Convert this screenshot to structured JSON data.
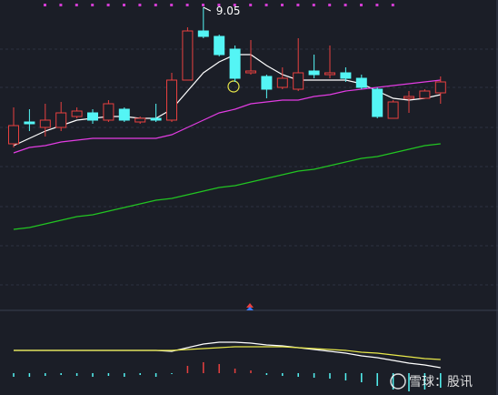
{
  "chart_data": [
    {
      "type": "candlestick",
      "annotation": "9.05",
      "ylim": [
        7.44,
        9.09
      ],
      "up_color": "#e8403f",
      "down_color": "#54f5f5",
      "open": [
        8.3,
        8.42,
        8.39,
        8.39,
        8.45,
        8.47,
        8.43,
        8.49,
        8.42,
        8.44,
        8.43,
        8.65,
        8.92,
        8.89,
        8.82,
        8.69,
        8.67,
        8.61,
        8.6,
        8.7,
        8.68,
        8.69,
        8.66,
        8.6,
        8.44,
        8.55,
        8.55,
        8.58
      ],
      "high": [
        8.5,
        8.49,
        8.52,
        8.53,
        8.5,
        8.49,
        8.54,
        8.5,
        8.45,
        8.52,
        8.69,
        8.94,
        9.05,
        8.9,
        8.84,
        8.87,
        8.68,
        8.72,
        8.88,
        8.79,
        8.84,
        8.72,
        8.68,
        8.61,
        8.54,
        8.59,
        8.6,
        8.67
      ],
      "low": [
        8.28,
        8.37,
        8.34,
        8.37,
        8.44,
        8.41,
        8.42,
        8.42,
        8.41,
        8.42,
        8.42,
        8.65,
        8.88,
        8.78,
        8.64,
        8.68,
        8.55,
        8.6,
        8.59,
        8.66,
        8.66,
        8.64,
        8.6,
        8.44,
        8.44,
        8.47,
        8.55,
        8.52
      ],
      "close": [
        8.4,
        8.41,
        8.43,
        8.47,
        8.48,
        8.43,
        8.52,
        8.43,
        8.44,
        8.43,
        8.65,
        8.92,
        8.89,
        8.79,
        8.66,
        8.7,
        8.6,
        8.66,
        8.69,
        8.68,
        8.69,
        8.66,
        8.61,
        8.45,
        8.53,
        8.56,
        8.59,
        8.64
      ],
      "series": [
        {
          "color": "#ffffff",
          "values": [
            8.29,
            8.33,
            8.37,
            8.4,
            8.43,
            8.44,
            8.45,
            8.45,
            8.44,
            8.44,
            8.49,
            8.59,
            8.69,
            8.75,
            8.79,
            8.79,
            8.73,
            8.68,
            8.65,
            8.65,
            8.65,
            8.65,
            8.63,
            8.59,
            8.55,
            8.54,
            8.55,
            8.57
          ]
        },
        {
          "color": "#e23ce2",
          "values": [
            8.25,
            8.28,
            8.29,
            8.31,
            8.32,
            8.33,
            8.33,
            8.33,
            8.33,
            8.33,
            8.35,
            8.39,
            8.43,
            8.47,
            8.49,
            8.52,
            8.53,
            8.54,
            8.54,
            8.56,
            8.57,
            8.59,
            8.6,
            8.61,
            8.62,
            8.63,
            8.64,
            8.65
          ]
        },
        {
          "color": "#22c522",
          "values": [
            7.83,
            7.84,
            7.86,
            7.88,
            7.9,
            7.91,
            7.93,
            7.95,
            7.97,
            7.99,
            8.0,
            8.02,
            8.04,
            8.06,
            8.07,
            8.09,
            8.11,
            8.13,
            8.15,
            8.16,
            8.18,
            8.2,
            8.22,
            8.23,
            8.25,
            8.27,
            8.29,
            8.3
          ]
        }
      ]
    },
    {
      "type": "macd",
      "ylim": [
        -0.024,
        0.07
      ],
      "watermark": "雪球：股讯",
      "series": [
        {
          "color": "#ffffff",
          "values": [
            0.025,
            0.025,
            0.025,
            0.025,
            0.025,
            0.025,
            0.025,
            0.025,
            0.025,
            0.025,
            0.024,
            0.028,
            0.032,
            0.034,
            0.034,
            0.033,
            0.031,
            0.03,
            0.028,
            0.026,
            0.024,
            0.022,
            0.019,
            0.017,
            0.014,
            0.011,
            0.009,
            0.006
          ]
        },
        {
          "color": "#e8e84a",
          "values": [
            0.025,
            0.025,
            0.025,
            0.025,
            0.025,
            0.025,
            0.025,
            0.025,
            0.025,
            0.025,
            0.025,
            0.026,
            0.027,
            0.028,
            0.029,
            0.029,
            0.029,
            0.029,
            0.028,
            0.027,
            0.026,
            0.025,
            0.023,
            0.022,
            0.02,
            0.018,
            0.016,
            0.015
          ]
        }
      ],
      "hist": [
        -0.004,
        -0.004,
        -0.003,
        -0.002,
        -0.003,
        -0.004,
        -0.003,
        -0.004,
        -0.002,
        -0.004,
        -0.001,
        0.008,
        0.012,
        0.01,
        0.005,
        0.003,
        -0.002,
        -0.003,
        -0.004,
        -0.005,
        -0.006,
        -0.008,
        -0.01,
        -0.014,
        -0.018,
        -0.02,
        -0.018,
        -0.016
      ],
      "up_color": "#e8403f",
      "down_color": "#54f5f5"
    }
  ]
}
